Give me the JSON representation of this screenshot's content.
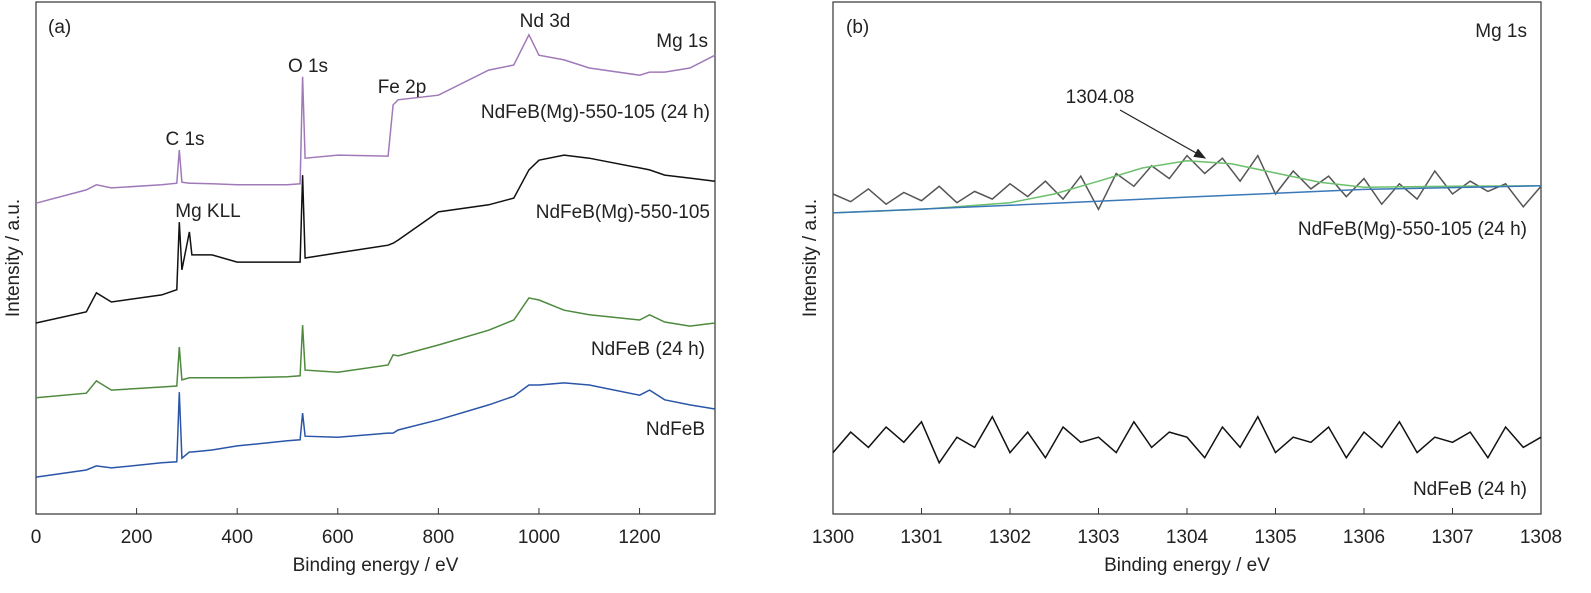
{
  "chart_data": [
    {
      "type": "line",
      "annotations": [
        "(a)",
        "C 1s",
        "Mg KLL",
        "O 1s",
        "Fe 2p",
        "Nd 3d",
        "Mg 1s"
      ],
      "xlabel": "Binding energy / eV",
      "ylabel": "Intensity / a.u.",
      "xlim": [
        0,
        1350
      ],
      "xticks": [
        0,
        200,
        400,
        600,
        800,
        1000,
        1200
      ],
      "ylim": [
        0,
        100
      ],
      "x": [
        0,
        100,
        120,
        150,
        250,
        280,
        285,
        290,
        305,
        310,
        350,
        400,
        500,
        525,
        530,
        535,
        600,
        700,
        710,
        720,
        800,
        900,
        950,
        980,
        1000,
        1050,
        1100,
        1200,
        1220,
        1250,
        1300,
        1350
      ],
      "series": [
        {
          "name": "NdFeB(Mg)-550-105 (24 h)",
          "color": "#a07ab8",
          "values": [
            60.7,
            63.3,
            64.3,
            63.7,
            64.3,
            64.6,
            71.1,
            64.8,
            64.6,
            64.6,
            64.5,
            64.3,
            64.3,
            64.5,
            85.4,
            69.5,
            70.1,
            69.9,
            79.9,
            80.9,
            81.8,
            86.7,
            87.7,
            93.6,
            89.6,
            88.7,
            87.1,
            85.7,
            86.3,
            86.3,
            87.1,
            89.6
          ]
        },
        {
          "name": "NdFeB(Mg)-550-105",
          "color": "#111111",
          "values": [
            37.3,
            39.5,
            43.2,
            41.4,
            42.8,
            43.8,
            57.0,
            47.7,
            55.1,
            50.6,
            50.6,
            49.2,
            49.2,
            49.2,
            66.2,
            50.0,
            51.0,
            52.5,
            52.9,
            53.5,
            59.0,
            60.4,
            61.7,
            67.2,
            69.1,
            70.1,
            69.5,
            67.6,
            67.2,
            66.2,
            65.6,
            65.0
          ]
        },
        {
          "name": "NdFeB (24 h)",
          "color": "#4e8a3e",
          "values": [
            22.7,
            23.6,
            26.0,
            24.2,
            24.8,
            25.0,
            32.6,
            26.2,
            26.6,
            26.6,
            26.6,
            26.6,
            26.8,
            27.0,
            36.9,
            28.1,
            27.7,
            29.1,
            31.1,
            30.9,
            33.0,
            35.9,
            37.9,
            42.2,
            41.8,
            39.8,
            38.9,
            37.9,
            38.9,
            37.5,
            36.7,
            37.3
          ]
        },
        {
          "name": "NdFeB",
          "color": "#2a55a8",
          "values": [
            7.2,
            8.6,
            9.4,
            9.0,
            10.0,
            10.2,
            23.8,
            10.9,
            12.1,
            12.1,
            12.5,
            13.3,
            14.3,
            14.5,
            19.7,
            15.2,
            15.0,
            15.8,
            15.8,
            16.4,
            18.4,
            21.3,
            23.0,
            25.2,
            25.2,
            25.6,
            25.2,
            23.2,
            24.2,
            22.3,
            21.3,
            20.5
          ]
        }
      ]
    },
    {
      "type": "line",
      "annotations": [
        "(b)",
        "Mg 1s",
        "1304.08"
      ],
      "xlabel": "Binding energy / eV",
      "ylabel": "Intensity / a.u.",
      "xlim": [
        1300,
        1308
      ],
      "xticks": [
        1300,
        1301,
        1302,
        1303,
        1304,
        1305,
        1306,
        1307,
        1308
      ],
      "ylim": [
        0,
        100
      ],
      "series": [
        {
          "name": "NdFeB(Mg)-550-105 (24 h)",
          "color": "#555555",
          "x": [
            1300,
            1300.2,
            1300.4,
            1300.6,
            1300.8,
            1301,
            1301.2,
            1301.4,
            1301.6,
            1301.8,
            1302,
            1302.2,
            1302.4,
            1302.6,
            1302.8,
            1303,
            1303.2,
            1303.4,
            1303.6,
            1303.8,
            1304,
            1304.2,
            1304.4,
            1304.6,
            1304.8,
            1305,
            1305.2,
            1305.4,
            1305.6,
            1305.8,
            1306,
            1306.2,
            1306.4,
            1306.6,
            1306.8,
            1307,
            1307.2,
            1307.4,
            1307.6,
            1307.8,
            1308
          ],
          "values": [
            62.5,
            61.0,
            63.5,
            60.5,
            62.8,
            61.2,
            64.0,
            60.8,
            63.0,
            61.5,
            64.5,
            62.0,
            65.0,
            61.5,
            66.0,
            59.5,
            66.5,
            64.0,
            68.0,
            65.5,
            70.0,
            66.5,
            69.5,
            65.0,
            70.0,
            62.5,
            67.0,
            63.5,
            66.0,
            62.0,
            65.5,
            60.5,
            64.5,
            61.5,
            67.0,
            62.5,
            65.0,
            63.0,
            64.5,
            60.0,
            64.0
          ]
        },
        {
          "color": "#6cbf6c",
          "x": [
            1300,
            1301,
            1302,
            1302.5,
            1303,
            1303.5,
            1304,
            1304.5,
            1305,
            1305.5,
            1306,
            1307,
            1308
          ],
          "values": [
            58.8,
            59.5,
            60.8,
            62.5,
            65.0,
            67.6,
            69.0,
            68.4,
            66.6,
            64.8,
            63.8,
            64.0,
            64.1
          ]
        },
        {
          "color": "#3a78b8",
          "x": [
            1300,
            1302,
            1304,
            1306,
            1308
          ],
          "values": [
            58.8,
            60.3,
            61.9,
            63.4,
            64.1
          ]
        },
        {
          "name": "NdFeB (24 h)",
          "color": "#111111",
          "x": [
            1300,
            1300.2,
            1300.4,
            1300.6,
            1300.8,
            1301,
            1301.2,
            1301.4,
            1301.6,
            1301.8,
            1302,
            1302.2,
            1302.4,
            1302.6,
            1302.8,
            1303,
            1303.2,
            1303.4,
            1303.6,
            1303.8,
            1304,
            1304.2,
            1304.4,
            1304.6,
            1304.8,
            1305,
            1305.2,
            1305.4,
            1305.6,
            1305.8,
            1306,
            1306.2,
            1306.4,
            1306.6,
            1306.8,
            1307,
            1307.2,
            1307.4,
            1307.6,
            1307.8,
            1308
          ],
          "values": [
            12,
            16,
            13,
            17,
            14,
            18,
            10,
            15,
            13,
            19,
            12,
            16,
            11,
            17,
            14,
            15,
            12,
            18,
            13,
            16,
            15,
            11,
            17,
            13,
            19,
            12,
            15,
            14,
            17,
            11,
            16,
            13,
            18,
            12,
            15,
            14,
            16,
            11,
            17,
            13,
            15
          ]
        }
      ]
    }
  ]
}
